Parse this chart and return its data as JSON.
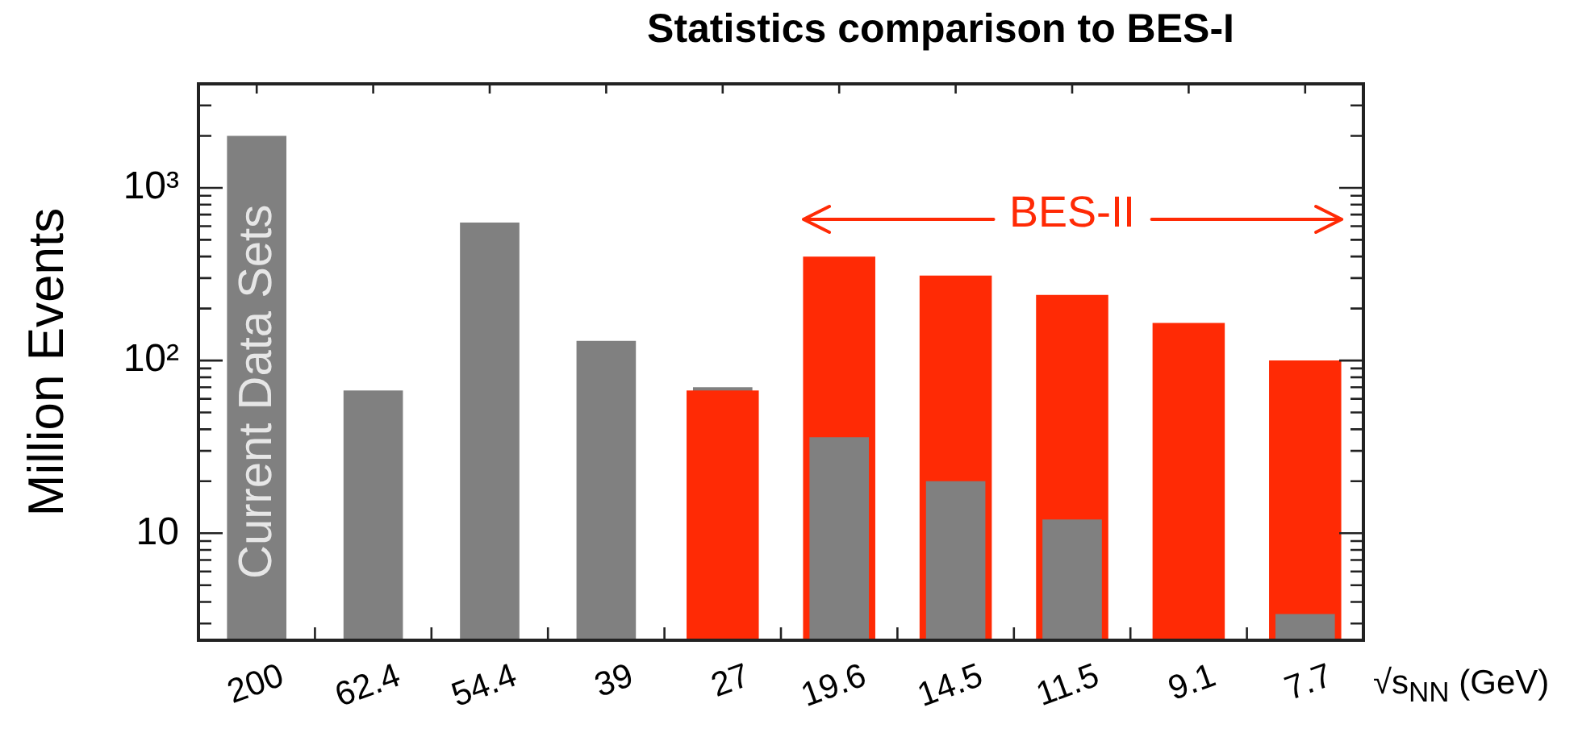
{
  "chart_data": {
    "type": "bar",
    "title": "Statistics comparison to BES-I",
    "xlabel": "√s$_{NN}$ (GeV)",
    "ylabel": "Million Events",
    "categories": [
      "200",
      "62.4",
      "54.4",
      "39",
      "27",
      "19.6",
      "14.5",
      "11.5",
      "9.1",
      "7.7"
    ],
    "series": [
      {
        "name": "Current Data Sets",
        "color": "#808080",
        "values": [
          2000,
          67,
          630,
          130,
          70,
          36,
          20,
          12,
          null,
          3.4
        ]
      },
      {
        "name": "BES-II",
        "color": "#ff2a05",
        "values": [
          null,
          null,
          null,
          null,
          67,
          400,
          310,
          240,
          165,
          100
        ]
      }
    ],
    "log": true,
    "ylim": [
      2.4,
      4000
    ],
    "yticks": [
      {
        "value": 3,
        "label": null
      },
      {
        "value": 4,
        "label": null
      },
      {
        "value": 5,
        "label": null
      },
      {
        "value": 6,
        "label": null
      },
      {
        "value": 7,
        "label": null
      },
      {
        "value": 8,
        "label": null
      },
      {
        "value": 9,
        "label": null
      },
      {
        "value": 10,
        "label": "10"
      },
      {
        "value": 20,
        "label": null
      },
      {
        "value": 30,
        "label": null
      },
      {
        "value": 40,
        "label": null
      },
      {
        "value": 50,
        "label": null
      },
      {
        "value": 60,
        "label": null
      },
      {
        "value": 70,
        "label": null
      },
      {
        "value": 80,
        "label": null
      },
      {
        "value": 90,
        "label": null
      },
      {
        "value": 100,
        "label": "10²"
      },
      {
        "value": 200,
        "label": null
      },
      {
        "value": 300,
        "label": null
      },
      {
        "value": 400,
        "label": null
      },
      {
        "value": 500,
        "label": null
      },
      {
        "value": 600,
        "label": null
      },
      {
        "value": 700,
        "label": null
      },
      {
        "value": 800,
        "label": null
      },
      {
        "value": 900,
        "label": null
      },
      {
        "value": 1000,
        "label": "10³"
      },
      {
        "value": 2000,
        "label": null
      },
      {
        "value": 3000,
        "label": null
      }
    ]
  }
}
